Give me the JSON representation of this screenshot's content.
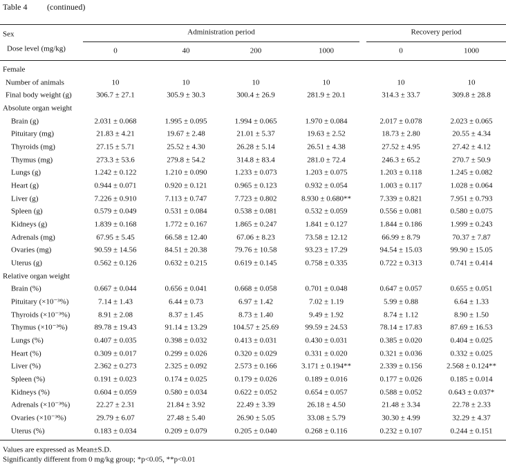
{
  "table": {
    "title": "Table 4",
    "subtitle": "(continued)",
    "header": {
      "sex": "Sex",
      "dose_label": "Dose level (mg/kg)",
      "groups": [
        {
          "label": "Administration period",
          "doses": [
            "0",
            "40",
            "200",
            "1000"
          ]
        },
        {
          "label": "Recovery period",
          "doses": [
            "0",
            "1000"
          ]
        }
      ]
    },
    "body": [
      {
        "label": "Female"
      },
      {
        "label": "Number of animals",
        "cells": [
          "10",
          "10",
          "10",
          "10",
          "10",
          "10"
        ]
      },
      {
        "label": "Final body weight (g)",
        "cells": [
          "306.7 ± 27.1",
          "305.9 ± 30.3",
          "300.4 ± 26.9",
          "281.9 ± 20.1",
          "314.3 ± 33.7",
          "309.8 ± 28.8"
        ]
      },
      {
        "label": "Absolute organ weight",
        "rows": [
          {
            "label": "Brain (g)",
            "cells": [
              "2.031 ± 0.068",
              "1.995 ± 0.095",
              "1.994 ± 0.065",
              "1.970 ± 0.084",
              "2.017 ± 0.078",
              "2.023 ± 0.065"
            ]
          },
          {
            "label": "Pituitary (mg)",
            "cells": [
              "21.83 ± 4.21",
              "19.67 ± 2.48",
              "21.01 ± 5.37",
              "19.63 ± 2.52",
              "18.73 ± 2.80",
              "20.55 ± 4.34"
            ]
          },
          {
            "label": "Thyroids (mg)",
            "cells": [
              "27.15 ± 5.71",
              "25.52 ± 4.30",
              "26.28 ± 5.14",
              "26.51 ± 4.38",
              "27.52 ± 4.95",
              "27.42 ± 4.12"
            ]
          },
          {
            "label": "Thymus (mg)",
            "cells": [
              "273.3 ± 53.6",
              "279.8 ± 54.2",
              "314.8 ± 83.4",
              "281.0 ± 72.4",
              "246.3 ± 65.2",
              "270.7 ± 50.9"
            ]
          },
          {
            "label": "Lungs (g)",
            "cells": [
              "1.242 ± 0.122",
              "1.210 ± 0.090",
              "1.233 ± 0.073",
              "1.203 ± 0.075",
              "1.203 ± 0.118",
              "1.245 ± 0.082"
            ]
          },
          {
            "label": "Heart (g)",
            "cells": [
              "0.944 ± 0.071",
              "0.920 ± 0.121",
              "0.965 ± 0.123",
              "0.932 ± 0.054",
              "1.003 ± 0.117",
              "1.028 ± 0.064"
            ]
          },
          {
            "label": "Liver (g)",
            "cells": [
              "7.226 ± 0.910",
              "7.113 ± 0.747",
              "7.723 ± 0.802",
              "8.930 ± 0.680**",
              "7.339 ± 0.821",
              "7.951 ± 0.793"
            ]
          },
          {
            "label": "Spleen (g)",
            "cells": [
              "0.579 ± 0.049",
              "0.531 ± 0.084",
              "0.538 ± 0.081",
              "0.532 ± 0.059",
              "0.556 ± 0.081",
              "0.580 ± 0.075"
            ]
          },
          {
            "label": "Kidneys (g)",
            "cells": [
              "1.839 ± 0.168",
              "1.772 ± 0.167",
              "1.865 ± 0.247",
              "1.841 ± 0.127",
              "1.844 ± 0.186",
              "1.999 ± 0.243"
            ]
          },
          {
            "label": "Adrenals (mg)",
            "cells": [
              "67.95 ± 5.45",
              "66.58 ± 12.40",
              "67.06 ± 8.23",
              "73.58 ± 12.12",
              "66.99 ± 8.79",
              "70.37 ± 7.87"
            ]
          },
          {
            "label": "Ovaries (mg)",
            "cells": [
              "90.59 ± 14.56",
              "84.51 ± 20.38",
              "79.76 ± 10.58",
              "93.23 ± 17.29",
              "94.54 ± 15.03",
              "99.90 ± 15.05"
            ]
          },
          {
            "label": "Uterus (g)",
            "cells": [
              "0.562 ± 0.126",
              "0.632 ± 0.215",
              "0.619 ± 0.145",
              "0.758 ± 0.335",
              "0.722 ± 0.313",
              "0.741 ± 0.414"
            ]
          }
        ]
      },
      {
        "label": "Relative organ weight",
        "rows": [
          {
            "label": "Brain (%)",
            "cells": [
              "0.667 ± 0.044",
              "0.656 ± 0.041",
              "0.668 ± 0.058",
              "0.701 ± 0.048",
              "0.647 ± 0.057",
              "0.655 ± 0.051"
            ]
          },
          {
            "label": "Pituitary (×10⁻³%)",
            "cells": [
              "7.14 ± 1.43",
              "6.44 ± 0.73",
              "6.97 ± 1.42",
              "7.02 ± 1.19",
              "5.99 ± 0.88",
              "6.64 ± 1.33"
            ]
          },
          {
            "label": "Thyroids (×10⁻³%)",
            "cells": [
              "8.91 ± 2.08",
              "8.37 ± 1.45",
              "8.73 ± 1.40",
              "9.49 ± 1.92",
              "8.74 ± 1.12",
              "8.90 ± 1.50"
            ]
          },
          {
            "label": "Thymus (×10⁻³%)",
            "cells": [
              "89.78 ± 19.43",
              "91.14 ± 13.29",
              "104.57 ± 25.69",
              "99.59 ± 24.53",
              "78.14 ± 17.83",
              "87.69 ± 16.53"
            ]
          },
          {
            "label": "Lungs (%)",
            "cells": [
              "0.407 ± 0.035",
              "0.398 ± 0.032",
              "0.413 ± 0.031",
              "0.430 ± 0.031",
              "0.385 ± 0.020",
              "0.404 ± 0.025"
            ]
          },
          {
            "label": "Heart (%)",
            "cells": [
              "0.309 ± 0.017",
              "0.299 ± 0.026",
              "0.320 ± 0.029",
              "0.331 ± 0.020",
              "0.321 ± 0.036",
              "0.332 ± 0.025"
            ]
          },
          {
            "label": "Liver (%)",
            "cells": [
              "2.362 ± 0.273",
              "2.325 ± 0.092",
              "2.573 ± 0.166",
              "3.171 ± 0.194**",
              "2.339 ± 0.156",
              "2.568 ± 0.124**"
            ]
          },
          {
            "label": "Spleen (%)",
            "cells": [
              "0.191 ± 0.023",
              "0.174 ± 0.025",
              "0.179 ± 0.026",
              "0.189 ± 0.016",
              "0.177 ± 0.026",
              "0.185 ± 0.014"
            ]
          },
          {
            "label": "Kidneys (%)",
            "cells": [
              "0.604 ± 0.059",
              "0.580 ± 0.034",
              "0.622 ± 0.052",
              "0.654 ± 0.057",
              "0.588 ± 0.052",
              "0.643 ± 0.037*"
            ]
          },
          {
            "label": "Adrenals (×10⁻³%)",
            "cells": [
              "22.27 ± 2.31",
              "21.84 ± 3.92",
              "22.49 ± 3.39",
              "26.18 ± 4.50",
              "21.48 ± 3.34",
              "22.78 ± 2.33"
            ]
          },
          {
            "label": "Ovaries (×10⁻³%)",
            "cells": [
              "29.79 ± 6.07",
              "27.48 ± 5.40",
              "26.90 ± 5.05",
              "33.08 ± 5.79",
              "30.30 ± 4.99",
              "32.29 ± 4.37"
            ]
          },
          {
            "label": "Uterus (%)",
            "cells": [
              "0.183 ± 0.034",
              "0.209 ± 0.079",
              "0.205 ± 0.040",
              "0.268 ± 0.116",
              "0.232 ± 0.107",
              "0.244 ± 0.151"
            ]
          }
        ]
      }
    ],
    "footnotes": [
      "Values are expressed as Mean±S.D.",
      "Significantly different from 0 mg/kg group; *p<0.05, **p<0.01"
    ]
  }
}
